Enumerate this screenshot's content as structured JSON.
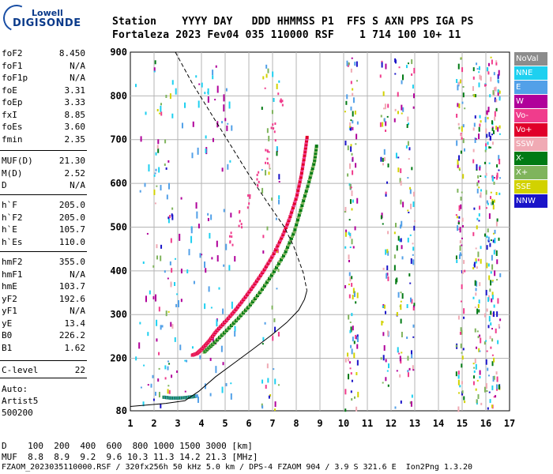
{
  "logo": {
    "line1": "Lowell",
    "line2": "DIGISONDE"
  },
  "header": {
    "row1": "Station    YYYY DAY   DDD HHMMSS P1  FFS S AXN PPS IGA PS",
    "row2": "Fortaleza 2023 Fev04 035 110000 RSF    1 714 100 10+ 11"
  },
  "params_group1": [
    {
      "name": "foF2",
      "value": "8.450"
    },
    {
      "name": "foF1",
      "value": "N/A"
    },
    {
      "name": "foF1p",
      "value": "N/A"
    },
    {
      "name": "foE",
      "value": "3.31"
    },
    {
      "name": "foEp",
      "value": "3.33"
    },
    {
      "name": "fxI",
      "value": "8.85"
    },
    {
      "name": "foEs",
      "value": "3.60"
    },
    {
      "name": "fmin",
      "value": "2.35"
    }
  ],
  "params_group2": [
    {
      "name": "MUF(D)",
      "value": "21.30"
    },
    {
      "name": "M(D)",
      "value": "2.52"
    },
    {
      "name": "D",
      "value": "N/A"
    }
  ],
  "params_group3": [
    {
      "name": "h`F",
      "value": "205.0"
    },
    {
      "name": "h`F2",
      "value": "205.0"
    },
    {
      "name": "h`E",
      "value": "105.7"
    },
    {
      "name": "h`Es",
      "value": "110.0"
    }
  ],
  "params_group4": [
    {
      "name": "hmF2",
      "value": "355.0"
    },
    {
      "name": "hmF1",
      "value": "N/A"
    },
    {
      "name": "hmE",
      "value": "103.7"
    },
    {
      "name": "yF2",
      "value": "192.6"
    },
    {
      "name": "yF1",
      "value": "N/A"
    },
    {
      "name": "yE",
      "value": "13.4"
    },
    {
      "name": "B0",
      "value": "226.2"
    },
    {
      "name": "B1",
      "value": "1.62"
    }
  ],
  "params_group5": [
    {
      "name": "C-level",
      "value": "22"
    }
  ],
  "auto": {
    "line1": "Auto:",
    "line2": "Artist5",
    "line3": "500200"
  },
  "legend": [
    {
      "label": "NoVal",
      "color": "#8c8c8c"
    },
    {
      "label": "NNE",
      "color": "#1ed0f0"
    },
    {
      "label": "E",
      "color": "#52a0e8"
    },
    {
      "label": "W",
      "color": "#b0009a"
    },
    {
      "label": "Vo-",
      "color": "#f03c8c"
    },
    {
      "label": "Vo+",
      "color": "#e0002a"
    },
    {
      "label": "SSW",
      "color": "#f0aab4"
    },
    {
      "label": "X-",
      "color": "#007a14"
    },
    {
      "label": "X+",
      "color": "#7fb45c"
    },
    {
      "label": "SSE",
      "color": "#d2d200"
    },
    {
      "label": "NNW",
      "color": "#1a14c8"
    }
  ],
  "footer": {
    "d_row": "D    100  200  400  600  800 1000 1500 3000 [km]",
    "muf_row": "MUF  8.8  8.9  9.2  9.6 10.3 11.3 14.2 21.3 [MHz]",
    "info_row": "FZAOM_2023035110000.RSF / 320fx256h 50 kHz 5.0 km / DPS-4 FZAOM 904 / 3.9 S 321.6 E  Ion2Png 1.3.20"
  },
  "chart_data": {
    "type": "scatter",
    "title": "",
    "xlabel": "",
    "ylabel": "",
    "x_ticks": [
      "1",
      "2",
      "3",
      "4",
      "5",
      "6",
      "7",
      "8",
      "9",
      "10",
      "11",
      "12",
      "13",
      "14",
      "15",
      "16",
      "17"
    ],
    "y_ticks": [
      "80",
      "200",
      "300",
      "400",
      "500",
      "600",
      "700",
      "800",
      "900"
    ],
    "xlim": [
      1,
      17
    ],
    "ylim": [
      80,
      900
    ],
    "grid": true,
    "o_trace": {
      "name": "O-mode virtual height trace",
      "x": [
        3.6,
        3.8,
        4.0,
        4.3,
        4.6,
        5.0,
        5.4,
        5.8,
        6.2,
        6.6,
        7.0,
        7.4,
        7.7,
        8.0,
        8.2,
        8.35,
        8.45
      ],
      "y": [
        208,
        212,
        222,
        240,
        262,
        285,
        310,
        338,
        368,
        400,
        436,
        480,
        520,
        570,
        620,
        670,
        710
      ]
    },
    "x_trace": {
      "name": "X-mode virtual height trace",
      "x": [
        4.1,
        4.5,
        5.0,
        5.5,
        6.0,
        6.5,
        7.0,
        7.5,
        7.9,
        8.2,
        8.5,
        8.75,
        8.85
      ],
      "y": [
        215,
        235,
        262,
        290,
        320,
        355,
        395,
        440,
        490,
        545,
        600,
        650,
        690
      ]
    },
    "es_trace": {
      "name": "E / Es layer echoes",
      "x": [
        2.4,
        2.7,
        3.0,
        3.3,
        3.6,
        3.8
      ],
      "y": [
        112,
        110,
        110,
        111,
        113,
        115
      ]
    },
    "spread_f": {
      "name": "Vo- oblique spread",
      "x": [
        5.2,
        5.6,
        6.0,
        6.4,
        6.7,
        7.0,
        7.3
      ],
      "y": [
        480,
        520,
        560,
        610,
        660,
        720,
        800
      ]
    },
    "profile_dashed": {
      "name": "electron density profile (upper, dashed)",
      "x": [
        2.9,
        3.6,
        4.4,
        5.2,
        6.0,
        6.8,
        7.5,
        7.9,
        8.3,
        8.45
      ],
      "y": [
        900,
        830,
        760,
        690,
        620,
        555,
        500,
        455,
        395,
        355
      ]
    },
    "profile_solid": {
      "name": "electron density profile (lower, solid)",
      "x": [
        1.0,
        2.5,
        3.3,
        3.9,
        4.6,
        5.4,
        6.2,
        7.0,
        7.6,
        8.1,
        8.35,
        8.45
      ],
      "y": [
        90,
        97,
        103,
        125,
        158,
        190,
        222,
        255,
        282,
        310,
        335,
        355
      ]
    },
    "interference_bands_mhz": [
      2.1,
      2.6,
      6.7,
      7.1,
      10.2,
      10.4,
      11.7,
      12.3,
      12.8,
      14.9,
      15.6,
      16.1,
      16.4
    ]
  }
}
